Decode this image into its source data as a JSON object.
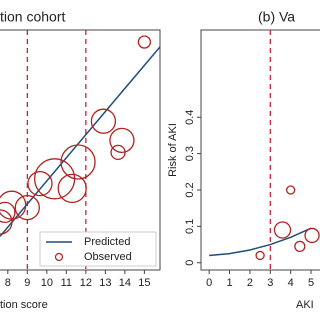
{
  "chart_data": [
    {
      "type": "bubble",
      "title": "tion cohort",
      "x_label": "tion score",
      "xlim": [
        7.6,
        15.8
      ],
      "xticks": [
        8,
        9,
        10,
        11,
        12,
        13,
        14,
        15
      ],
      "ylim": [
        0,
        1
      ],
      "vlines": [
        9,
        12
      ],
      "vline_color": "#c8102e",
      "legend": "bottom-left",
      "series": [
        {
          "name": "Predicted",
          "type": "line",
          "color": "#1f4e79",
          "x": [
            7.6,
            15.8
          ],
          "values": [
            0.14,
            0.93
          ]
        },
        {
          "name": "Observed",
          "type": "scatter",
          "color": "#b22222",
          "x": [
            15,
            12.9,
            13.85,
            13.65,
            10.4,
            11.6,
            11.3,
            9.65,
            9,
            8.2,
            7.85,
            7.6
          ],
          "values": [
            0.95,
            0.62,
            0.54,
            0.49,
            0.38,
            0.45,
            0.34,
            0.36,
            0.26,
            0.27,
            0.24,
            0.2
          ],
          "sizes": [
            6,
            12,
            12,
            7,
            20,
            17,
            14,
            12,
            12,
            14,
            10,
            12
          ]
        }
      ]
    },
    {
      "type": "bubble",
      "title": "(b) Va",
      "x_label": "AKI",
      "y_label": "Risk of AKI",
      "xlim": [
        -0.4,
        5.44
      ],
      "xticks": [
        0,
        1,
        2,
        3,
        4,
        5
      ],
      "ylim": [
        -0.02,
        0.64
      ],
      "yticks": [
        0,
        0.1,
        0.2,
        0.3,
        0.4
      ],
      "vlines": [
        3
      ],
      "vline_color": "#c8102e",
      "series": [
        {
          "type": "line",
          "color": "#1f4e79",
          "x": [
            0,
            1,
            2,
            3,
            4,
            5
          ],
          "values": [
            0.02,
            0.025,
            0.035,
            0.05,
            0.07,
            0.095
          ]
        },
        {
          "type": "scatter",
          "color": "#b22222",
          "x": [
            2.5,
            3.6,
            4.0,
            4.45,
            5.05
          ],
          "values": [
            0.02,
            0.09,
            0.2,
            0.045,
            0.075
          ],
          "sizes": [
            4,
            8,
            4,
            5,
            7
          ]
        }
      ]
    }
  ]
}
